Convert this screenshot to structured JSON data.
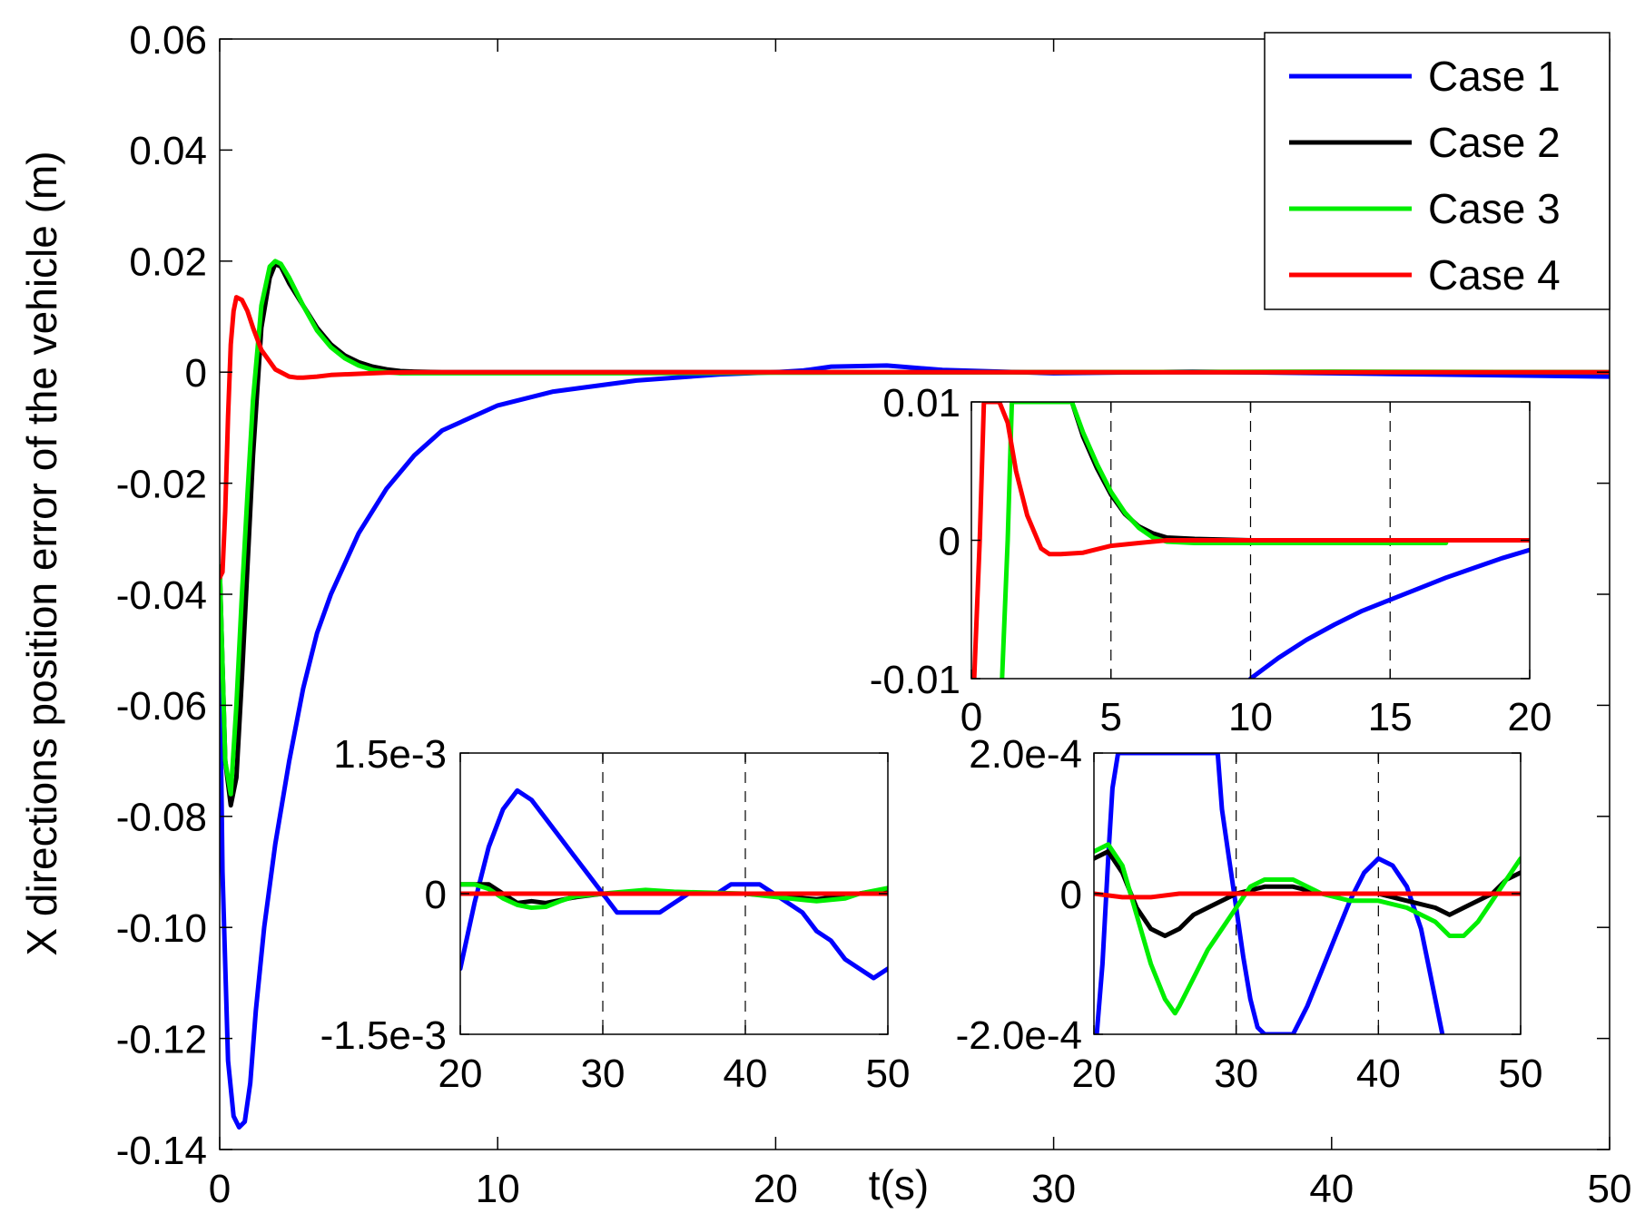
{
  "chart_data": [
    {
      "type": "line",
      "role": "main",
      "xlabel": "t(s)",
      "ylabel": "X directions position error of the vehicle (m)",
      "xlim": [
        0,
        50
      ],
      "ylim": [
        -0.14,
        0.06
      ],
      "x_ticks": [
        0,
        10,
        20,
        30,
        40,
        50
      ],
      "x_tick_labels": [
        "0",
        "10",
        "20",
        "30",
        "40",
        "50"
      ],
      "y_ticks": [
        0.06,
        0.04,
        0.02,
        0,
        -0.02,
        -0.04,
        -0.06,
        -0.08,
        -0.1,
        -0.12,
        -0.14
      ],
      "y_tick_labels": [
        "0.06",
        "0.04",
        "0.02",
        "0",
        "-0.02",
        "-0.04",
        "-0.06",
        "-0.08",
        "-0.10",
        "-0.12",
        "-0.14"
      ],
      "grid": false,
      "legend": "top-right",
      "series": [
        {
          "name": "Case 1",
          "color": "#0000ff",
          "x": [
            0,
            0.1,
            0.3,
            0.5,
            0.7,
            0.9,
            1.1,
            1.3,
            1.6,
            2.0,
            2.5,
            3.0,
            3.5,
            4.0,
            5.0,
            6.0,
            7.0,
            8.0,
            10.0,
            12.0,
            15.0,
            18.0,
            20.0,
            21.0,
            22.0,
            24.0,
            26.0,
            30.0,
            35.0,
            40.0,
            45.0,
            50.0
          ],
          "y": [
            -0.05,
            -0.09,
            -0.124,
            -0.134,
            -0.136,
            -0.135,
            -0.128,
            -0.115,
            -0.1,
            -0.085,
            -0.07,
            -0.057,
            -0.047,
            -0.04,
            -0.029,
            -0.021,
            -0.015,
            -0.0105,
            -0.006,
            -0.0035,
            -0.0015,
            -0.0004,
            0,
            0.0003,
            0.001,
            0.0012,
            0.0004,
            -0.0002,
            0.0001,
            -0.0002,
            -0.0005,
            -0.0008
          ]
        },
        {
          "name": "Case 2",
          "color": "#000000",
          "x": [
            0,
            0.2,
            0.4,
            0.6,
            0.8,
            1.0,
            1.2,
            1.5,
            1.8,
            2.0,
            2.2,
            2.5,
            3.0,
            3.5,
            4.0,
            4.5,
            5.0,
            5.5,
            6.0,
            6.5,
            7.0,
            8.0,
            10.0,
            15.0,
            20.0,
            30.0,
            40.0,
            50.0
          ],
          "y": [
            -0.035,
            -0.07,
            -0.078,
            -0.073,
            -0.055,
            -0.035,
            -0.015,
            0.008,
            0.017,
            0.0195,
            0.019,
            0.016,
            0.012,
            0.008,
            0.005,
            0.003,
            0.0018,
            0.001,
            0.0005,
            0.0002,
            0.0001,
            0,
            0,
            0,
            0,
            0,
            0,
            0
          ]
        },
        {
          "name": "Case 3",
          "color": "#00ee00",
          "x": [
            0,
            0.2,
            0.4,
            0.6,
            0.8,
            1.0,
            1.2,
            1.5,
            1.8,
            2.0,
            2.2,
            2.5,
            3.0,
            3.5,
            4.0,
            4.5,
            5.0,
            5.5,
            6.0,
            6.5,
            7.0,
            8.0,
            10.0,
            15.0,
            20.0,
            30.0,
            40.0,
            50.0
          ],
          "y": [
            -0.035,
            -0.07,
            -0.076,
            -0.06,
            -0.04,
            -0.022,
            -0.005,
            0.012,
            0.019,
            0.02,
            0.0195,
            0.017,
            0.012,
            0.0075,
            0.0045,
            0.0025,
            0.0012,
            0.0004,
            0,
            -0.0002,
            -0.0002,
            -0.0002,
            -0.0002,
            -0.0002,
            -0.0001,
            0,
            0.0001,
            0
          ]
        },
        {
          "name": "Case 4",
          "color": "#ff0000",
          "x": [
            0,
            0.1,
            0.2,
            0.3,
            0.4,
            0.5,
            0.6,
            0.8,
            1.0,
            1.2,
            1.5,
            2.0,
            2.5,
            2.8,
            3.0,
            3.5,
            4.0,
            5.0,
            6.0,
            7.0,
            10.0,
            20.0,
            30.0,
            40.0,
            50.0
          ],
          "y": [
            -0.037,
            -0.036,
            -0.025,
            -0.008,
            0.005,
            0.011,
            0.0135,
            0.013,
            0.011,
            0.008,
            0.004,
            0.0005,
            -0.0008,
            -0.001,
            -0.001,
            -0.0008,
            -0.0005,
            -0.0003,
            -0.0001,
            0,
            0,
            0,
            0,
            0,
            0
          ]
        }
      ]
    },
    {
      "type": "line",
      "role": "inset",
      "xlim": [
        0,
        20
      ],
      "ylim": [
        -0.01,
        0.01
      ],
      "x_ticks": [
        0,
        5,
        10,
        15,
        20
      ],
      "x_tick_labels": [
        "0",
        "5",
        "10",
        "15",
        "20"
      ],
      "y_ticks": [
        0.01,
        0,
        -0.01
      ],
      "y_tick_labels": [
        "0.01",
        "0",
        "-0.01"
      ],
      "grid": true,
      "series": [
        {
          "name": "Case 1",
          "color": "#0000ff",
          "x": [
            10,
            11,
            12,
            13,
            14,
            15,
            16,
            17,
            18,
            19,
            20
          ],
          "y": [
            -0.01,
            -0.0085,
            -0.0072,
            -0.0061,
            -0.0051,
            -0.0043,
            -0.0035,
            -0.0027,
            -0.002,
            -0.0013,
            -0.0007
          ]
        },
        {
          "name": "Case 2",
          "color": "#000000",
          "x": [
            3.6,
            4.0,
            4.5,
            5.0,
            5.5,
            6.0,
            6.5,
            7.0,
            8.0,
            10.0,
            15.0,
            20.0
          ],
          "y": [
            0.01,
            0.0075,
            0.0052,
            0.0033,
            0.0019,
            0.001,
            0.0005,
            0.0002,
            0.0001,
            0,
            0,
            0
          ]
        },
        {
          "name": "Case 3",
          "color": "#00ee00",
          "x": [
            1.1,
            1.3,
            1.45,
            3.6,
            4.0,
            4.5,
            5.0,
            5.5,
            6.0,
            6.5,
            7.0,
            8.0,
            10.0,
            15.0,
            17.0
          ],
          "y": [
            -0.01,
            0.0,
            0.01,
            0.01,
            0.0078,
            0.0055,
            0.0035,
            0.002,
            0.0009,
            0.0002,
            -0.0001,
            -0.0002,
            -0.0002,
            -0.0002,
            -0.0002
          ]
        },
        {
          "name": "Case 4",
          "color": "#ff0000",
          "x": [
            0.1,
            0.3,
            0.45,
            0.6,
            1.0,
            1.3,
            1.6,
            2.0,
            2.5,
            2.8,
            3.2,
            4.0,
            5.0,
            6.0,
            7.0,
            10.0,
            15.0,
            20.0
          ],
          "y": [
            -0.01,
            0.0,
            0.01,
            0.01,
            0.01,
            0.0085,
            0.005,
            0.0018,
            -0.0006,
            -0.001,
            -0.001,
            -0.0009,
            -0.0004,
            -0.0002,
            0,
            0,
            0,
            0
          ]
        }
      ]
    },
    {
      "type": "line",
      "role": "inset",
      "xlim": [
        20,
        50
      ],
      "ylim": [
        -0.0015,
        0.0015
      ],
      "x_ticks": [
        20,
        30,
        40,
        50
      ],
      "x_tick_labels": [
        "20",
        "30",
        "40",
        "50"
      ],
      "y_ticks": [
        0.0015,
        0,
        -0.0015
      ],
      "y_tick_labels": [
        "1.5e-3",
        "0",
        "-1.5e-3"
      ],
      "grid": true,
      "series": [
        {
          "name": "Case 1",
          "color": "#0000ff",
          "x": [
            20,
            21,
            22,
            23,
            24,
            25,
            26,
            27,
            28,
            29,
            30,
            31,
            32,
            33,
            34,
            35,
            36,
            37,
            38,
            39,
            40,
            41,
            42,
            43,
            44,
            45,
            46,
            47,
            48,
            49,
            50
          ],
          "y": [
            -0.0008,
            -0.0001,
            0.0005,
            0.0009,
            0.0011,
            0.001,
            0.0008,
            0.0006,
            0.0004,
            0.0002,
            0.0,
            -0.0002,
            -0.0002,
            -0.0002,
            -0.0002,
            -0.0001,
            0.0,
            0.0,
            0.0,
            0.0001,
            0.0001,
            0.0001,
            0.0,
            -0.0001,
            -0.0002,
            -0.0004,
            -0.0005,
            -0.0007,
            -0.0008,
            -0.0009,
            -0.0008
          ]
        },
        {
          "name": "Case 2",
          "color": "#000000",
          "x": [
            20,
            22,
            24,
            25,
            26,
            28,
            30,
            35,
            40,
            45,
            48,
            50
          ],
          "y": [
            0.0001,
            0.0001,
            -0.0001,
            -8e-05,
            -0.0001,
            -4e-05,
            0,
            0,
            0,
            -6e-05,
            0,
            5e-05
          ]
        },
        {
          "name": "Case 3",
          "color": "#00ee00",
          "x": [
            20,
            21,
            22,
            23,
            24,
            25,
            26,
            27,
            28,
            30,
            33,
            35,
            40,
            43,
            45,
            47,
            48,
            50
          ],
          "y": [
            0.0001,
            0.0001,
            5e-05,
            -5e-05,
            -0.00012,
            -0.00015,
            -0.00014,
            -8e-05,
            -3e-05,
            0,
            4e-05,
            2e-05,
            0,
            -5e-05,
            -8e-05,
            -5e-05,
            0,
            6e-05
          ]
        },
        {
          "name": "Case 4",
          "color": "#ff0000",
          "x": [
            20,
            50
          ],
          "y": [
            0,
            0
          ]
        }
      ]
    },
    {
      "type": "line",
      "role": "inset",
      "xlim": [
        20,
        50
      ],
      "ylim": [
        -0.0002,
        0.0002
      ],
      "x_ticks": [
        20,
        30,
        40,
        50
      ],
      "x_tick_labels": [
        "20",
        "30",
        "40",
        "50"
      ],
      "y_ticks": [
        0.0002,
        0,
        -0.0002
      ],
      "y_tick_labels": [
        "2.0e-4",
        "0",
        "-2.0e-4"
      ],
      "grid": true,
      "series": [
        {
          "name": "Case 1",
          "color": "#0000ff",
          "x": [
            20.2,
            20.6,
            21.0,
            21.3,
            21.7,
            28.7,
            29.0,
            29.5,
            30.0,
            30.5,
            31.0,
            31.5,
            32.0,
            34.0,
            35.0,
            36.0,
            37.0,
            38.0,
            39.0,
            40.0,
            41.0,
            42.0,
            43.0,
            43.5,
            44.0,
            44.5
          ],
          "y": [
            -0.0002,
            -0.0001,
            5e-05,
            0.00015,
            0.0002,
            0.0002,
            0.00012,
            5e-05,
            -2e-05,
            -9e-05,
            -0.00015,
            -0.00019,
            -0.0002,
            -0.0002,
            -0.00016,
            -0.00011,
            -6e-05,
            -1e-05,
            3e-05,
            5e-05,
            4e-05,
            1e-05,
            -5e-05,
            -0.0001,
            -0.00015,
            -0.0002
          ]
        },
        {
          "name": "Case 2",
          "color": "#000000",
          "x": [
            20,
            21,
            22,
            23,
            24,
            25,
            26,
            27,
            28,
            30,
            32,
            34,
            36,
            38,
            40,
            42,
            44,
            45,
            46,
            47,
            48,
            49,
            50
          ],
          "y": [
            5e-05,
            6e-05,
            3e-05,
            -2e-05,
            -5e-05,
            -6e-05,
            -5e-05,
            -3e-05,
            -2e-05,
            0,
            1e-05,
            1e-05,
            0,
            0,
            0,
            -1e-05,
            -2e-05,
            -3e-05,
            -2e-05,
            -1e-05,
            0,
            2e-05,
            3e-05
          ]
        },
        {
          "name": "Case 3",
          "color": "#00ee00",
          "x": [
            20,
            21,
            22,
            23,
            24,
            25,
            25.7,
            26,
            27,
            28,
            29,
            30,
            31,
            32,
            33,
            34,
            35,
            36,
            38,
            40,
            42,
            44,
            45,
            46,
            47,
            48,
            49,
            50
          ],
          "y": [
            6e-05,
            7e-05,
            4e-05,
            -3e-05,
            -0.0001,
            -0.00015,
            -0.00017,
            -0.00016,
            -0.00012,
            -8e-05,
            -5e-05,
            -2e-05,
            1e-05,
            2e-05,
            2e-05,
            2e-05,
            1e-05,
            0,
            -1e-05,
            -1e-05,
            -2e-05,
            -4e-05,
            -6e-05,
            -6e-05,
            -4e-05,
            -1e-05,
            2e-05,
            5e-05
          ]
        },
        {
          "name": "Case 4",
          "color": "#ff0000",
          "x": [
            20,
            22,
            24,
            26,
            28,
            30,
            40,
            50
          ],
          "y": [
            0,
            -5e-06,
            -5e-06,
            0,
            0,
            0,
            0,
            0
          ]
        }
      ]
    }
  ]
}
